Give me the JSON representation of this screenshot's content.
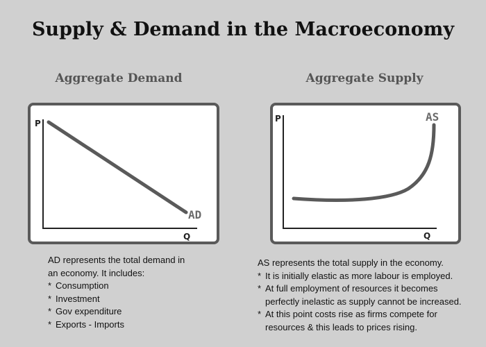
{
  "title": "Supply & Demand in the Macroeconomy",
  "ad_panel": {
    "heading": "Aggregate Demand",
    "y_axis_label": "P",
    "x_axis_label": "Q",
    "curve_label": "AD",
    "description_lines": [
      "AD represents the total demand in",
      "an economy.  It includes:"
    ],
    "bullet_marker": "*",
    "items": [
      "Consumption",
      "Investment",
      "Gov expenditure",
      "Exports - Imports"
    ]
  },
  "as_panel": {
    "heading": "Aggregate Supply",
    "y_axis_label": "P",
    "x_axis_label": "Q",
    "curve_label": "AS",
    "description_lines": [
      "AS represents the total supply in the economy."
    ],
    "bullet_marker": "*",
    "items": [
      [
        "It is initially elastic as more labour is employed."
      ],
      [
        "At full employment of resources it becomes",
        "perfectly inelastic as supply cannot be increased."
      ],
      [
        "At this point costs rise as firms compete for",
        "resources & this leads to prices rising."
      ]
    ]
  },
  "colors": {
    "background": "#d0d0d0",
    "box_border": "#5a5a5a",
    "curve": "#5a5a5a",
    "heading": "#555555"
  }
}
